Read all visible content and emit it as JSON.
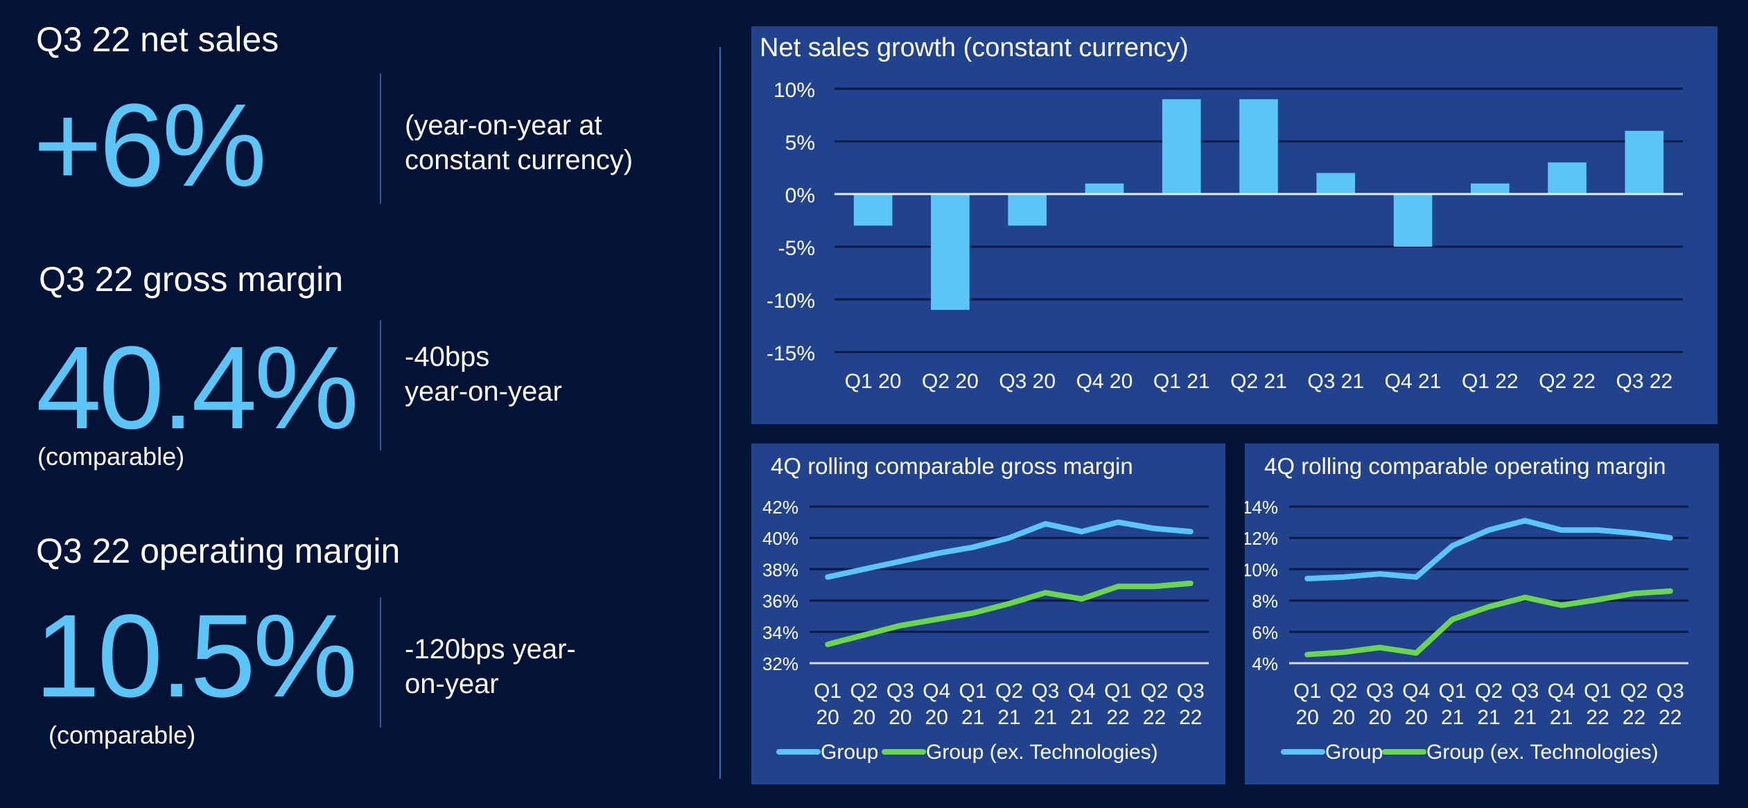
{
  "kpis": {
    "net_sales": {
      "title": "Q3 22 net sales",
      "value": "+6%",
      "note_line1": "(year-on-year at",
      "note_line2": "constant currency)"
    },
    "gross_margin": {
      "title": "Q3 22 gross margin",
      "value": "40.4%",
      "sub": "(comparable)",
      "note_line1": "-40bps",
      "note_line2": "year-on-year"
    },
    "operating_margin": {
      "title": "Q3 22 operating margin",
      "value": "10.5%",
      "sub": "(comparable)",
      "note_line1": "-120bps year-",
      "note_line2": "on-year"
    }
  },
  "colors": {
    "background": "#031335",
    "panel": "#21428c",
    "accent_blue": "#5cc5f7",
    "accent_green": "#6cd54e",
    "gridline": "#0a1a40"
  },
  "chart_data": [
    {
      "id": "net_sales_growth",
      "type": "bar",
      "title": "Net sales growth (constant currency)",
      "categories": [
        "Q1 20",
        "Q2 20",
        "Q3 20",
        "Q4 20",
        "Q1 21",
        "Q2 21",
        "Q3 21",
        "Q4 21",
        "Q1 22",
        "Q2 22",
        "Q3 22"
      ],
      "values": [
        -3,
        -11,
        -3,
        1,
        9,
        9,
        2,
        -5,
        1,
        3,
        6
      ],
      "ylim": [
        -15,
        10
      ],
      "yticks": [
        10,
        5,
        0,
        -5,
        -10,
        -15
      ],
      "ytick_labels": [
        "10%",
        "5%",
        "0%",
        "-5%",
        "-10%",
        "-15%"
      ],
      "xlabel": "",
      "ylabel": "",
      "grid": true,
      "legend": "none"
    },
    {
      "id": "gross_margin_rolling",
      "type": "line",
      "title": "4Q rolling comparable gross margin",
      "categories": [
        [
          "Q1",
          "20"
        ],
        [
          "Q2",
          "20"
        ],
        [
          "Q3",
          "20"
        ],
        [
          "Q4",
          "20"
        ],
        [
          "Q1",
          "21"
        ],
        [
          "Q2",
          "21"
        ],
        [
          "Q3",
          "21"
        ],
        [
          "Q4",
          "21"
        ],
        [
          "Q1",
          "22"
        ],
        [
          "Q2",
          "22"
        ],
        [
          "Q3",
          "22"
        ]
      ],
      "series": [
        {
          "name": "Group",
          "color": "#5cc5f7",
          "values": [
            37.5,
            38.0,
            38.5,
            39.0,
            39.4,
            40.0,
            40.9,
            40.4,
            41.0,
            40.6,
            40.4
          ]
        },
        {
          "name": "Group (ex. Technologies)",
          "color": "#6cd54e",
          "values": [
            33.2,
            33.8,
            34.4,
            34.8,
            35.2,
            35.8,
            36.5,
            36.1,
            36.9,
            36.9,
            37.1
          ]
        }
      ],
      "ylim": [
        32,
        42
      ],
      "yticks": [
        42,
        40,
        38,
        36,
        34,
        32
      ],
      "ytick_labels": [
        "42%",
        "40%",
        "38%",
        "36%",
        "34%",
        "32%"
      ],
      "xlabel": "",
      "ylabel": "",
      "grid": true,
      "legend": "bottom"
    },
    {
      "id": "operating_margin_rolling",
      "type": "line",
      "title": "4Q rolling comparable operating margin",
      "categories": [
        [
          "Q1",
          "20"
        ],
        [
          "Q2",
          "20"
        ],
        [
          "Q3",
          "20"
        ],
        [
          "Q4",
          "20"
        ],
        [
          "Q1",
          "21"
        ],
        [
          "Q2",
          "21"
        ],
        [
          "Q3",
          "21"
        ],
        [
          "Q4",
          "21"
        ],
        [
          "Q1",
          "22"
        ],
        [
          "Q2",
          "22"
        ],
        [
          "Q3",
          "22"
        ]
      ],
      "series": [
        {
          "name": "Group",
          "color": "#5cc5f7",
          "values": [
            9.4,
            9.5,
            9.7,
            9.5,
            11.5,
            12.5,
            13.1,
            12.5,
            12.5,
            12.3,
            12.0
          ]
        },
        {
          "name": "Group (ex. Technologies)",
          "color": "#6cd54e",
          "values": [
            4.55,
            4.7,
            5.0,
            4.65,
            6.8,
            7.6,
            8.2,
            7.7,
            8.05,
            8.45,
            8.6
          ]
        }
      ],
      "ylim": [
        4,
        14
      ],
      "yticks": [
        14,
        12,
        10,
        8,
        6,
        4
      ],
      "ytick_labels": [
        "14%",
        "12%",
        "10%",
        "8%",
        "6%",
        "4%"
      ],
      "xlabel": "",
      "ylabel": "",
      "grid": true,
      "legend": "bottom"
    }
  ]
}
